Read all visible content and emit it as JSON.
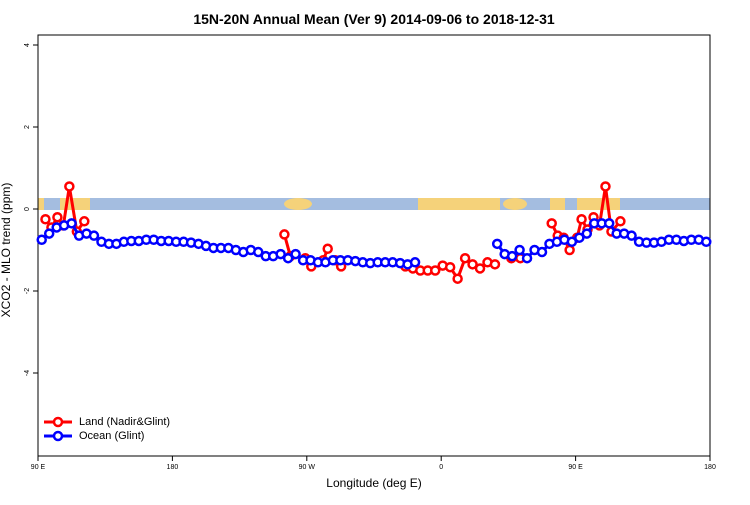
{
  "chart_data": {
    "type": "line",
    "title": "15N-20N Annual Mean (Ver 9)   2014-09-06 to 2018-12-31",
    "xlabel": "Longitude (deg E)",
    "ylabel": "XCO2 - MLO trend (ppm)",
    "xlim": [
      90,
      540
    ],
    "ylim": [
      -6,
      4
    ],
    "xticks": [
      {
        "value": 90,
        "label": "90 E"
      },
      180,
      {
        "value": 270,
        "label": "90 W"
      },
      {
        "value": 360,
        "label": "0"
      },
      {
        "value": 450,
        "label": "90 E"
      },
      {
        "value": 540,
        "label": "180"
      }
    ],
    "yticks": [
      -4,
      -2,
      0,
      2,
      4
    ],
    "legend": "bottom-left",
    "series": [
      {
        "name": "Land (Nadir&Glint)",
        "color": "#ff0000",
        "x": [
          95,
          99,
          103,
          107,
          111,
          116,
          121,
          125,
          255,
          259,
          262,
          269,
          273,
          276,
          281,
          284,
          287,
          289,
          293,
          296,
          336,
          341,
          346,
          351,
          356,
          361,
          366,
          371,
          376,
          381,
          386,
          391,
          396,
          400,
          407,
          413,
          420,
          434,
          438,
          442,
          446,
          451,
          454,
          458,
          462,
          466,
          470,
          474,
          480
        ],
        "values": [
          -0.25,
          -0.45,
          -0.2,
          -0.4,
          0.55,
          -0.55,
          -0.3,
          null,
          -0.62,
          -1.15,
          null,
          -1.2,
          -1.4,
          null,
          -1.25,
          -0.97,
          null,
          -1.25,
          -1.4,
          null,
          -1.4,
          -1.45,
          -1.5,
          -1.5,
          -1.5,
          -1.38,
          -1.42,
          -1.7,
          -1.2,
          -1.35,
          -1.45,
          -1.3,
          -1.35,
          null,
          -1.2,
          -1.2,
          null,
          -0.35,
          -0.65,
          -0.7,
          -1.0,
          -0.7,
          -0.25,
          -0.5,
          -0.2,
          -0.4,
          0.55,
          -0.55,
          -0.3
        ]
      },
      {
        "name": "Ocean (Glint)",
        "color": "#0000ff",
        "x": [
          92.5,
          97.5,
          102.5,
          107.5,
          112.5,
          117.5,
          122.5,
          127.5,
          132.5,
          137.5,
          142.5,
          147.5,
          152.5,
          157.5,
          162.5,
          167.5,
          172.5,
          177.5,
          182.5,
          187.5,
          192.5,
          197.5,
          202.5,
          207.5,
          212.5,
          217.5,
          222.5,
          227.5,
          232.5,
          237.5,
          242.5,
          247.5,
          252.5,
          257.5,
          262.5,
          267.5,
          272.5,
          277.5,
          282.5,
          287.5,
          292.5,
          297.5,
          302.5,
          307.5,
          312.5,
          317.5,
          322.5,
          327.5,
          332.5,
          337.5,
          342.5,
          347.5,
          397.5,
          402.5,
          407.5,
          412.5,
          417.5,
          422.5,
          427.5,
          432.5,
          437.5,
          442.5,
          447.5,
          452.5,
          457.5,
          462.5,
          467.5,
          472.5,
          477.5,
          482.5,
          487.5,
          492.5,
          497.5,
          502.5,
          507.5,
          512.5,
          517.5,
          522.5,
          527.5,
          532.5,
          537.5
        ],
        "values": [
          -0.75,
          -0.6,
          -0.45,
          -0.4,
          -0.35,
          -0.65,
          -0.6,
          -0.65,
          -0.8,
          -0.85,
          -0.85,
          -0.8,
          -0.78,
          -0.78,
          -0.75,
          -0.75,
          -0.78,
          -0.78,
          -0.8,
          -0.8,
          -0.82,
          -0.85,
          -0.9,
          -0.95,
          -0.95,
          -0.95,
          -1.0,
          -1.05,
          -1.0,
          -1.05,
          -1.15,
          -1.15,
          -1.1,
          -1.2,
          -1.1,
          -1.25,
          -1.25,
          -1.3,
          -1.3,
          -1.25,
          -1.25,
          -1.25,
          -1.27,
          -1.3,
          -1.32,
          -1.3,
          -1.3,
          -1.3,
          -1.32,
          -1.35,
          -1.3,
          null,
          -0.85,
          -1.1,
          -1.15,
          -1.0,
          -1.2,
          -1.0,
          -1.05,
          -0.85,
          -0.8,
          -0.75,
          -0.8,
          -0.7,
          -0.6,
          -0.35,
          -0.35,
          -0.35,
          -0.6,
          -0.6,
          -0.65,
          -0.8,
          -0.82,
          -0.82,
          -0.8,
          -0.75,
          -0.75,
          -0.78,
          -0.75,
          -0.75,
          -0.8
        ]
      }
    ]
  }
}
